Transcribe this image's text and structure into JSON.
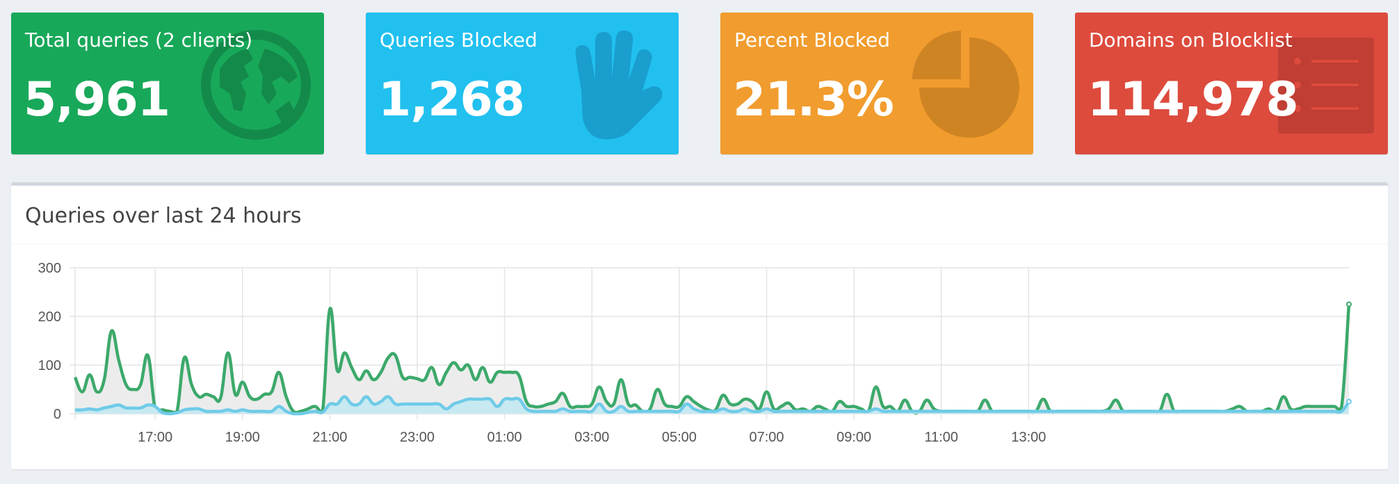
{
  "stats": [
    {
      "title": "Total queries (2 clients)",
      "value": "5,961",
      "color": "#18a85a",
      "icon": "globe-icon"
    },
    {
      "title": "Queries Blocked",
      "value": "1,268",
      "color": "#21c0ef",
      "icon": "hand-icon"
    },
    {
      "title": "Percent Blocked",
      "value": "21.3%",
      "color": "#f19c2e",
      "icon": "pie-chart-icon"
    },
    {
      "title": "Domains on Blocklist",
      "value": "114,978",
      "color": "#dd4b3d",
      "icon": "list-icon"
    }
  ],
  "chart_box": {
    "title": "Queries over last 24 hours"
  },
  "chart_data": {
    "type": "area",
    "ylim": [
      0,
      300
    ],
    "yticks": [
      "0",
      "100",
      "200",
      "300"
    ],
    "xticks": [
      "17:00",
      "19:00",
      "21:00",
      "23:00",
      "01:00",
      "03:00",
      "05:00",
      "07:00",
      "09:00",
      "11:00",
      "13:00"
    ],
    "x_start": "15:10",
    "interval_minutes": 10,
    "grid": true,
    "series": [
      {
        "color": "#3ca96b",
        "fill": "#ececec",
        "values": [
          75,
          45,
          80,
          45,
          70,
          170,
          110,
          60,
          50,
          60,
          120,
          10,
          8,
          5,
          5,
          115,
          60,
          35,
          40,
          35,
          33,
          125,
          40,
          65,
          35,
          30,
          40,
          45,
          85,
          35,
          5,
          5,
          10,
          15,
          5,
          215,
          90,
          125,
          95,
          70,
          88,
          70,
          85,
          115,
          120,
          75,
          75,
          72,
          70,
          95,
          60,
          85,
          105,
          90,
          100,
          70,
          95,
          65,
          85,
          85,
          85,
          78,
          25,
          15,
          15,
          20,
          25,
          42,
          15,
          15,
          15,
          20,
          55,
          25,
          20,
          70,
          20,
          18,
          5,
          10,
          50,
          20,
          15,
          15,
          35,
          25,
          15,
          8,
          8,
          38,
          20,
          20,
          30,
          25,
          10,
          45,
          10,
          15,
          22,
          8,
          10,
          5,
          15,
          10,
          5,
          25,
          15,
          15,
          10,
          5,
          55,
          15,
          15,
          5,
          28,
          5,
          5,
          28,
          10,
          5,
          5,
          5,
          5,
          5,
          5,
          28,
          5,
          5,
          5,
          5,
          5,
          5,
          5,
          30,
          5,
          5,
          5,
          5,
          5,
          5,
          5,
          5,
          10,
          28,
          5,
          5,
          5,
          5,
          5,
          5,
          40,
          5,
          5,
          5,
          5,
          5,
          5,
          5,
          5,
          10,
          15,
          5,
          5,
          5,
          10,
          5,
          35,
          10,
          10,
          15,
          15,
          15,
          15,
          15,
          15,
          225
        ]
      },
      {
        "color": "#6fcbe8",
        "fill": "#c7e9f1",
        "values": [
          8,
          8,
          10,
          8,
          12,
          15,
          18,
          12,
          12,
          12,
          18,
          15,
          2,
          0,
          2,
          8,
          10,
          10,
          5,
          5,
          5,
          8,
          5,
          8,
          5,
          5,
          5,
          5,
          15,
          5,
          0,
          0,
          3,
          5,
          3,
          20,
          20,
          35,
          20,
          20,
          35,
          20,
          25,
          35,
          20,
          20,
          20,
          20,
          20,
          20,
          20,
          10,
          20,
          25,
          30,
          30,
          30,
          30,
          15,
          30,
          30,
          30,
          10,
          5,
          5,
          5,
          5,
          10,
          5,
          5,
          5,
          5,
          20,
          5,
          5,
          15,
          5,
          5,
          5,
          5,
          5,
          5,
          5,
          5,
          20,
          10,
          5,
          5,
          5,
          10,
          5,
          5,
          10,
          5,
          5,
          10,
          5,
          5,
          5,
          5,
          5,
          5,
          5,
          5,
          5,
          5,
          5,
          5,
          5,
          5,
          10,
          5,
          5,
          5,
          5,
          5,
          5,
          5,
          5,
          5,
          5,
          5,
          5,
          5,
          5,
          5,
          5,
          5,
          5,
          5,
          5,
          5,
          5,
          5,
          5,
          5,
          5,
          5,
          5,
          5,
          5,
          5,
          5,
          5,
          5,
          5,
          5,
          5,
          5,
          5,
          5,
          5,
          5,
          5,
          5,
          5,
          5,
          5,
          5,
          5,
          5,
          5,
          5,
          5,
          5,
          5,
          5,
          5,
          5,
          5,
          5,
          5,
          5,
          5,
          5,
          25
        ]
      }
    ]
  }
}
